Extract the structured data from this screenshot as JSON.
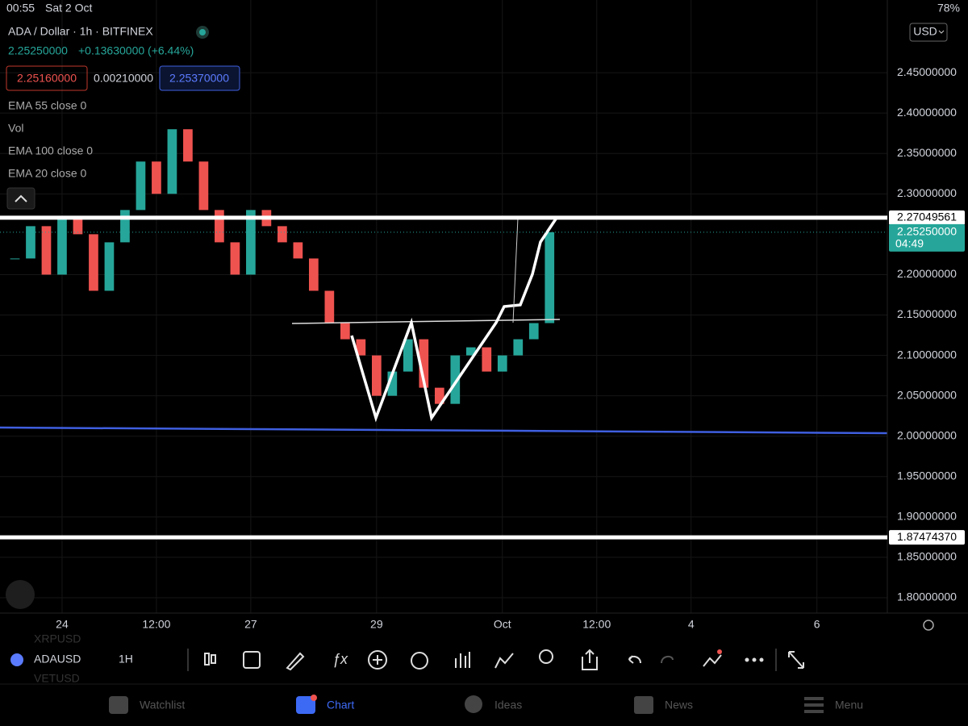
{
  "status_bar": {
    "time": "00:55",
    "date": "Sat 2 Oct",
    "battery": "78%"
  },
  "header": {
    "symbol_title": "ADA / Dollar · 1h · BITFINEX",
    "last_price": "2.25250000",
    "change": "+0.13630000 (+6.44%)",
    "bid": "2.25160000",
    "spread": "0.00210000",
    "ask": "2.25370000"
  },
  "indicators": [
    "EMA 55 close 0",
    "Vol",
    "EMA 100 close 0",
    "EMA 20 close 0"
  ],
  "currency": "USD",
  "chart_data": {
    "type": "candlestick",
    "x": [
      -0.75,
      -0.5,
      -0.25,
      0,
      0.25,
      0.5,
      0.75,
      1,
      1.25,
      1.5,
      1.75,
      2,
      2.25,
      2.5,
      2.75,
      3,
      3.25,
      3.5,
      3.75,
      4,
      4.25,
      4.5,
      4.75,
      5,
      5.25,
      5.5,
      5.75,
      6,
      6.25,
      6.5,
      6.75,
      7,
      7.25,
      7.5,
      7.75
    ],
    "closes": [
      2.22,
      2.26,
      2.2,
      2.27,
      2.25,
      2.18,
      2.24,
      2.28,
      2.34,
      2.3,
      2.38,
      2.34,
      2.28,
      2.24,
      2.2,
      2.28,
      2.26,
      2.24,
      2.22,
      2.18,
      2.14,
      2.12,
      2.1,
      2.05,
      2.08,
      2.12,
      2.06,
      2.04,
      2.1,
      2.11,
      2.08,
      2.1,
      2.12,
      2.14,
      2.2525
    ],
    "xlim": [
      -0.987,
      13.12
    ],
    "ylim": [
      1.781,
      2.54
    ],
    "xticks": [
      {
        "value": 0,
        "label": "24"
      },
      {
        "value": 1.5,
        "label": "12:00"
      },
      {
        "value": 3,
        "label": "27"
      },
      {
        "value": 5,
        "label": "29"
      },
      {
        "value": 7,
        "label": "Oct"
      },
      {
        "value": 8.5,
        "label": "12:00"
      },
      {
        "value": 10,
        "label": "4"
      },
      {
        "value": 12,
        "label": "6"
      }
    ],
    "yticks": [
      {
        "value": 2.45,
        "label": "2.45000000"
      },
      {
        "value": 2.4,
        "label": "2.40000000"
      },
      {
        "value": 2.35,
        "label": "2.35000000"
      },
      {
        "value": 2.3,
        "label": "2.30000000"
      },
      {
        "value": 2.2,
        "label": "2.20000000"
      },
      {
        "value": 2.15,
        "label": "2.15000000"
      },
      {
        "value": 2.1,
        "label": "2.10000000"
      },
      {
        "value": 2.05,
        "label": "2.05000000"
      },
      {
        "value": 2,
        "label": "2.00000000"
      },
      {
        "value": 1.95,
        "label": "1.95000000"
      },
      {
        "value": 1.9,
        "label": "1.90000000"
      },
      {
        "value": 1.85,
        "label": "1.85000000"
      },
      {
        "value": 1.8,
        "label": "1.80000000"
      }
    ],
    "levels": [
      {
        "value": 2.27049561,
        "label": "2.27049561"
      },
      {
        "value": 1.8747437,
        "label": "1.87474370"
      }
    ],
    "price_label": {
      "value": 2.2525,
      "label": "2.25250000"
    },
    "countdown": "04:49"
  },
  "toolbar": {
    "symbol": "ADAUSD",
    "interval": "1H",
    "previous_symbol": "XRPUSD",
    "next_symbol": "VETUSD"
  },
  "nav": [
    "Watchlist",
    "Chart",
    "Ideas",
    "News",
    "Menu"
  ]
}
